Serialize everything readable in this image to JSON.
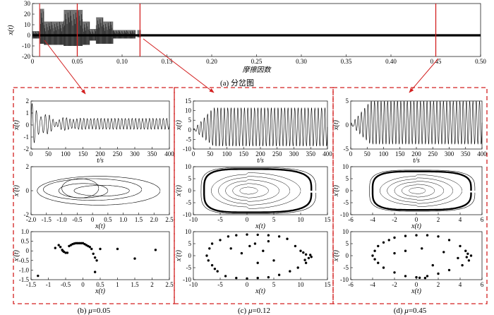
{
  "chart_data": [
    {
      "id": "a",
      "type": "bifurcation",
      "caption": "(a) 分岔图",
      "xlabel": "摩擦因数",
      "ylabel": "x(t)",
      "xlim": [
        0,
        0.5
      ],
      "ylim": [
        -20,
        30
      ],
      "xticks": [
        "0",
        "0.05",
        "0.10",
        "0.15",
        "0.20",
        "0.25",
        "0.30",
        "0.35",
        "0.40",
        "0.45",
        "0.50"
      ],
      "yticks": [
        "30",
        "20",
        "10",
        "0",
        "-10",
        "-20"
      ],
      "markers": [
        0.05,
        0.12,
        0.45
      ],
      "bands": [
        {
          "x": [
            0.0,
            0.008
          ],
          "y": [
            -3,
            4
          ]
        },
        {
          "x": [
            0.008,
            0.013
          ],
          "y": [
            -8,
            25
          ]
        },
        {
          "x": [
            0.013,
            0.035
          ],
          "y": [
            -9,
            13
          ]
        },
        {
          "x": [
            0.035,
            0.056
          ],
          "y": [
            -10,
            24
          ]
        },
        {
          "x": [
            0.056,
            0.064
          ],
          "y": [
            -9,
            13
          ]
        },
        {
          "x": [
            0.064,
            0.071
          ],
          "y": [
            -5,
            6
          ]
        },
        {
          "x": [
            0.071,
            0.079
          ],
          "y": [
            -8,
            17
          ]
        },
        {
          "x": [
            0.079,
            0.09
          ],
          "y": [
            -8,
            13
          ]
        },
        {
          "x": [
            0.09,
            0.115
          ],
          "y": [
            -3,
            5
          ]
        }
      ]
    },
    {
      "id": "b",
      "caption_prefix": "(b) ",
      "mu_symbol": "μ",
      "mu_value": "=0.05",
      "time": {
        "type": "line",
        "xlabel": "t/s",
        "ylabel": "x(t)",
        "xlim": [
          0,
          400
        ],
        "ylim": [
          -2,
          2
        ],
        "xticks": [
          "0",
          "50",
          "100",
          "150",
          "200",
          "250",
          "300",
          "350",
          "400"
        ],
        "yticks": [
          "2",
          "1",
          "0",
          "-1",
          "-2"
        ],
        "transient_end": 100,
        "steady_amplitude": 0.45,
        "steady_offset": 0.1,
        "period": 10
      },
      "phase": {
        "type": "line",
        "xlabel": "x(t)",
        "ylabel": "x'(t)",
        "xlim": [
          -2.0,
          2.5
        ],
        "ylim": [
          -2,
          2
        ],
        "xticks": [
          "-2.0",
          "-1.5",
          "-1.0",
          "-0.5",
          "0",
          "0.5",
          "1.0",
          "1.5",
          "2.0",
          "2.5"
        ],
        "yticks": [
          "2",
          "0",
          "-2"
        ],
        "loops": [
          {
            "cx": 0.2,
            "cy": 0,
            "rx": 2.0,
            "ry": 1.2
          },
          {
            "cx": 0.0,
            "cy": 0.1,
            "rx": 1.6,
            "ry": 0.9
          },
          {
            "cx": -0.3,
            "cy": 0,
            "rx": 0.8,
            "ry": 0.6
          },
          {
            "cx": -0.4,
            "cy": 0.2,
            "rx": 0.6,
            "ry": 0.8
          },
          {
            "cx": 0.3,
            "cy": 0,
            "rx": 0.9,
            "ry": 0.45
          }
        ]
      },
      "poincare": {
        "type": "scatter",
        "xlabel": "x(t)",
        "ylabel": "x'(t)",
        "xlim": [
          -1.5,
          2.5
        ],
        "ylim": [
          -1.5,
          1.0
        ],
        "xticks": [
          "-1.5",
          "-1",
          "-0.5",
          "0",
          "0.5",
          "1",
          "1.5",
          "2",
          "2.5"
        ],
        "yticks": [
          "1.0",
          "0.5",
          "0",
          "-0.5",
          "-1.0",
          "-1.5"
        ],
        "points": [
          [
            -1.3,
            -1.3
          ],
          [
            -0.8,
            0.15
          ],
          [
            -0.6,
            0.05
          ],
          [
            -0.58,
            0.0
          ],
          [
            -0.55,
            -0.05
          ],
          [
            -0.5,
            -0.1
          ],
          [
            -0.45,
            -0.1
          ],
          [
            -0.4,
            0.25
          ],
          [
            -0.35,
            0.3
          ],
          [
            -0.3,
            0.35
          ],
          [
            -0.25,
            0.38
          ],
          [
            -0.2,
            0.4
          ],
          [
            -0.15,
            0.4
          ],
          [
            -0.1,
            0.4
          ],
          [
            -0.05,
            0.4
          ],
          [
            0.0,
            0.4
          ],
          [
            0.05,
            0.35
          ],
          [
            0.1,
            0.3
          ],
          [
            0.15,
            0.25
          ],
          [
            0.2,
            0.2
          ],
          [
            0.25,
            0.1
          ],
          [
            0.3,
            -0.15
          ],
          [
            0.35,
            -0.35
          ],
          [
            0.4,
            -0.5
          ],
          [
            0.5,
            0.1
          ],
          [
            0.35,
            -1.1
          ],
          [
            1.0,
            0.1
          ],
          [
            1.5,
            -0.4
          ],
          [
            2.1,
            0.05
          ],
          [
            -0.7,
            0.3
          ],
          [
            -0.65,
            0.2
          ]
        ]
      }
    },
    {
      "id": "c",
      "caption_prefix": "(c) ",
      "mu_symbol": "μ",
      "mu_value": "=0.12",
      "time": {
        "type": "line",
        "xlabel": "t/s",
        "ylabel": "x(t)",
        "xlim": [
          0,
          400
        ],
        "ylim": [
          -10,
          15
        ],
        "xticks": [
          "0",
          "50",
          "100",
          "150",
          "200",
          "250",
          "300",
          "350",
          "400"
        ],
        "yticks": [
          "15",
          "10",
          "5",
          "0",
          "-5",
          "-10"
        ],
        "transient_end": 60,
        "steady_min": -8.5,
        "steady_max": 11.5,
        "period": 10
      },
      "phase": {
        "type": "line",
        "xlabel": "x(t)",
        "ylabel": "x'(t)",
        "xlim": [
          -10,
          15
        ],
        "ylim": [
          -10,
          10
        ],
        "xticks": [
          "-10",
          "-5",
          "0",
          "5",
          "10",
          "15"
        ],
        "yticks": [
          "10",
          "5",
          "0",
          "-5",
          "-10"
        ],
        "limit_cycle": {
          "xmin": -8,
          "xmax": 12,
          "ymax": 9,
          "ymin": -9
        },
        "spiral_center": [
          0,
          0
        ]
      },
      "poincare": {
        "type": "scatter",
        "xlabel": "x(t)",
        "ylabel": "x'(t)",
        "xlim": [
          -10,
          15
        ],
        "ylim": [
          -10,
          10
        ],
        "xticks": [
          "-10",
          "-5",
          "0",
          "5",
          "10",
          "15"
        ],
        "yticks": [
          "10",
          "5",
          "0",
          "-5",
          "-10"
        ],
        "points": [
          [
            -7.5,
            0
          ],
          [
            -7,
            3
          ],
          [
            -6.5,
            5
          ],
          [
            -5,
            6.5
          ],
          [
            -3.5,
            8
          ],
          [
            -2,
            8.5
          ],
          [
            0,
            8.8
          ],
          [
            2,
            8.7
          ],
          [
            4,
            8.5
          ],
          [
            6,
            8
          ],
          [
            7.5,
            7
          ],
          [
            9,
            4
          ],
          [
            10,
            2
          ],
          [
            11,
            0.5
          ],
          [
            11.5,
            -1
          ],
          [
            11,
            -3
          ],
          [
            9.5,
            -5
          ],
          [
            8,
            -6.5
          ],
          [
            6,
            -8
          ],
          [
            4,
            -9
          ],
          [
            2,
            -9.3
          ],
          [
            0,
            -9.5
          ],
          [
            -2,
            -9.3
          ],
          [
            -4,
            -8.5
          ],
          [
            -5.5,
            -6.5
          ],
          [
            -6.5,
            -4
          ],
          [
            -7.2,
            -2
          ],
          [
            0.5,
            4
          ],
          [
            1.5,
            5
          ],
          [
            2,
            -3
          ],
          [
            -1,
            1
          ],
          [
            3,
            2
          ],
          [
            4,
            6
          ],
          [
            -3,
            3
          ],
          [
            5,
            -2
          ],
          [
            12,
            -0.5
          ],
          [
            11.8,
            0.3
          ],
          [
            10.5,
            1.3
          ],
          [
            10.8,
            -1.8
          ],
          [
            -6,
            -5.5
          ]
        ]
      }
    },
    {
      "id": "d",
      "caption_prefix": "(d) ",
      "mu_symbol": "μ",
      "mu_value": "=0.45",
      "time": {
        "type": "line",
        "xlabel": "t/s",
        "ylabel": "x(t)",
        "xlim": [
          0,
          400
        ],
        "ylim": [
          -5,
          5
        ],
        "xticks": [
          "0",
          "50",
          "100",
          "150",
          "200",
          "250",
          "300",
          "350",
          "400"
        ],
        "yticks": [
          "5",
          "0",
          "-5"
        ],
        "transient_end": 60,
        "steady_min": -4,
        "steady_max": 5,
        "period": 10
      },
      "phase": {
        "type": "line",
        "xlabel": "x(t)",
        "ylabel": "x'(t)",
        "xlim": [
          -6,
          6
        ],
        "ylim": [
          -10,
          10
        ],
        "xticks": [
          "-6",
          "-4",
          "-2",
          "0",
          "2",
          "4",
          "6"
        ],
        "yticks": [
          "10",
          "5",
          "0",
          "-5",
          "-10"
        ],
        "limit_cycle": {
          "xmin": -4,
          "xmax": 5,
          "ymax": 8,
          "ymin": -8
        },
        "spiral_center": [
          0,
          0
        ]
      },
      "poincare": {
        "type": "scatter",
        "xlabel": "x(t)",
        "ylabel": "x'(t)",
        "xlim": [
          -6,
          6
        ],
        "ylim": [
          -10,
          10
        ],
        "xticks": [
          "-6",
          "-4",
          "-2",
          "0",
          "2",
          "4",
          "6"
        ],
        "yticks": [
          "10",
          "5",
          "0",
          "-5",
          "-10"
        ],
        "points": [
          [
            -4,
            0
          ],
          [
            -3.8,
            2
          ],
          [
            -3.5,
            4
          ],
          [
            -3,
            5.5
          ],
          [
            -2.5,
            6.5
          ],
          [
            -2,
            7.5
          ],
          [
            -1,
            8.2
          ],
          [
            0,
            8.5
          ],
          [
            1,
            8.5
          ],
          [
            2,
            8
          ],
          [
            3,
            6.5
          ],
          [
            4,
            4
          ],
          [
            4.5,
            2
          ],
          [
            5,
            0
          ],
          [
            4.8,
            -2
          ],
          [
            4.2,
            -4
          ],
          [
            3,
            -6
          ],
          [
            2,
            -7.5
          ],
          [
            1,
            -8.5
          ],
          [
            0,
            -9
          ],
          [
            -1,
            -8.5
          ],
          [
            -2,
            -7
          ],
          [
            -3,
            -5
          ],
          [
            -3.5,
            -3
          ],
          [
            -3.8,
            -1.5
          ],
          [
            -1,
            2
          ],
          [
            0.5,
            3
          ],
          [
            1.5,
            -4
          ],
          [
            -2,
            1
          ],
          [
            2.5,
            1.5
          ],
          [
            4.7,
            0.8
          ],
          [
            4.6,
            -0.6
          ],
          [
            3.8,
            -1
          ],
          [
            0.3,
            -9.2
          ],
          [
            0.8,
            -9.3
          ]
        ]
      }
    }
  ]
}
